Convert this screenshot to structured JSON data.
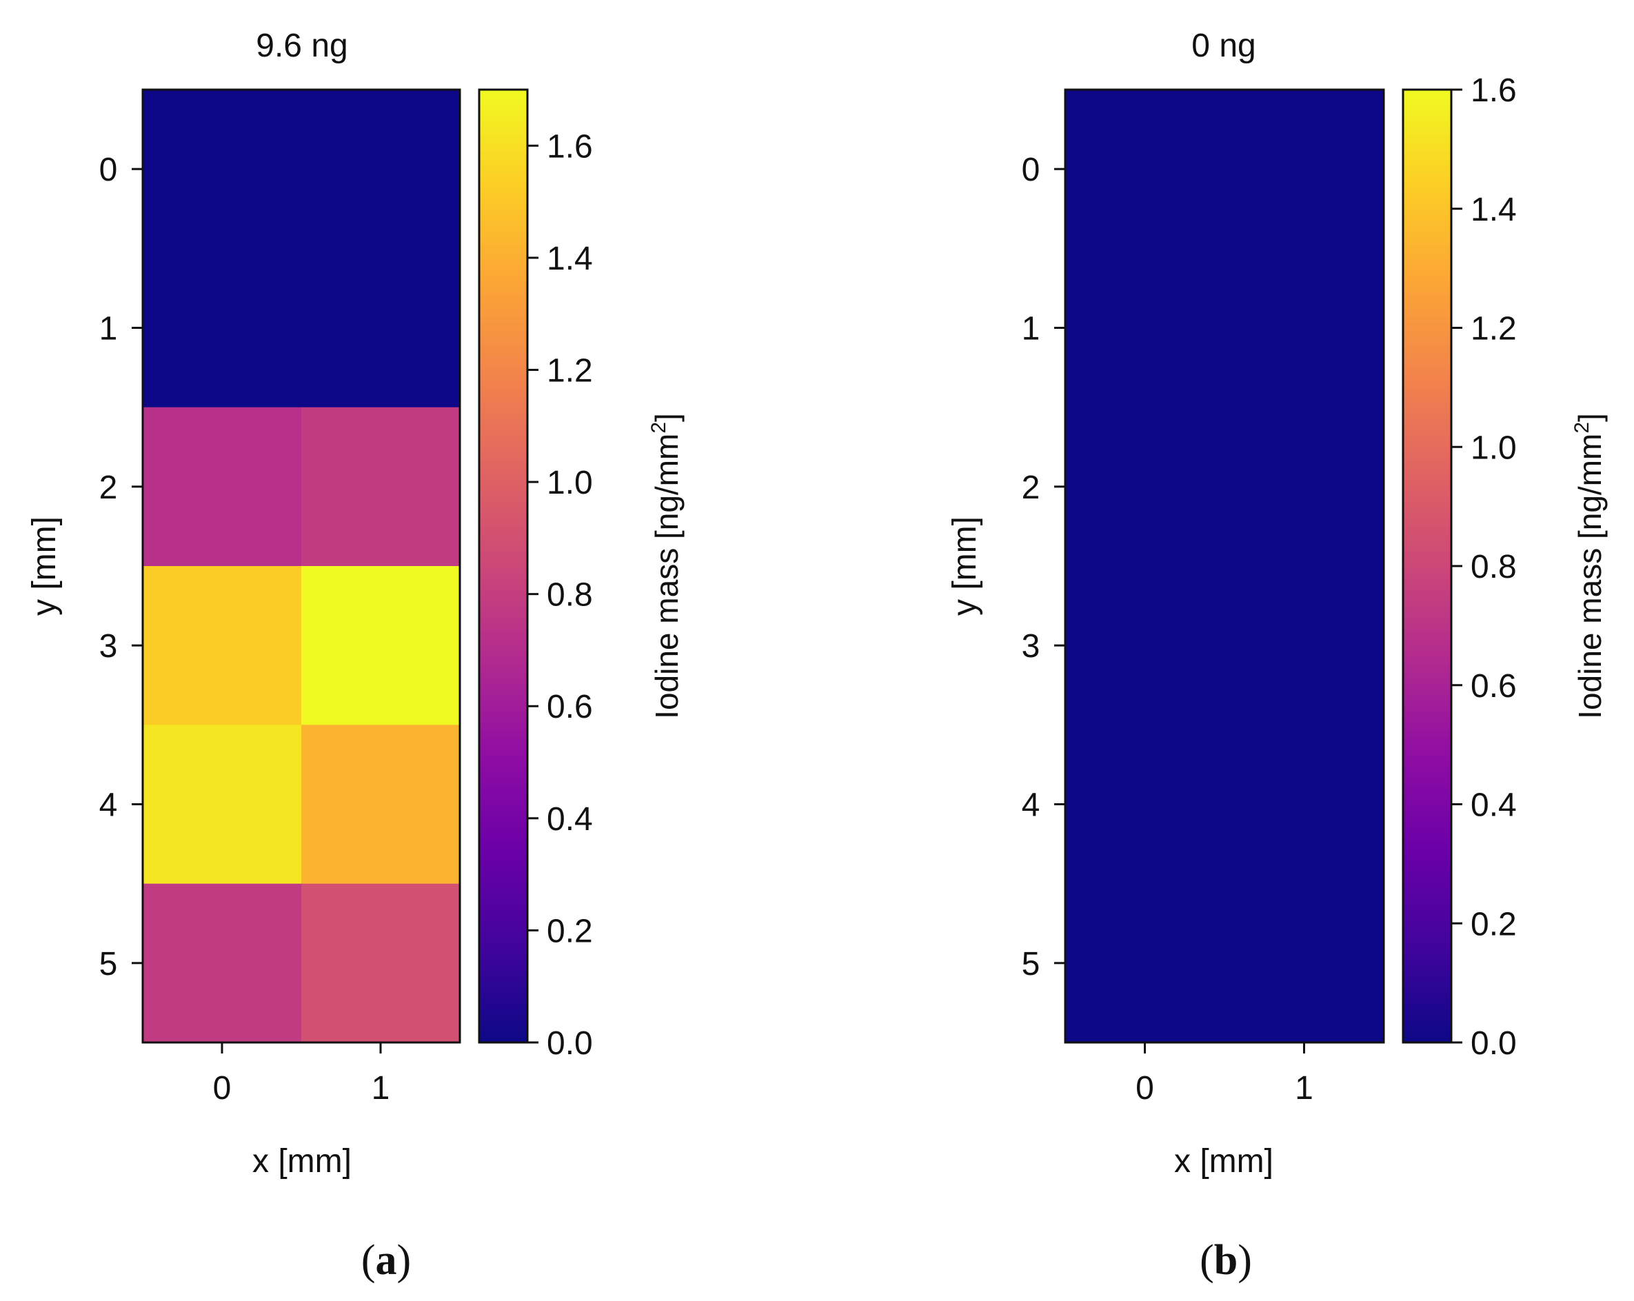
{
  "figure": {
    "caption_a_letter": "a",
    "caption_b_letter": "b"
  },
  "chart_data": [
    {
      "type": "heatmap",
      "panel": "a",
      "title": "9.6 ng",
      "xlabel": "x [mm]",
      "ylabel": "y [mm]",
      "x_categories": [
        "0",
        "1"
      ],
      "y_categories": [
        "0",
        "1",
        "2",
        "3",
        "4",
        "5"
      ],
      "values": [
        [
          0.0,
          0.0
        ],
        [
          0.0,
          0.0
        ],
        [
          0.72,
          0.78
        ],
        [
          1.52,
          1.7
        ],
        [
          1.62,
          1.42
        ],
        [
          0.78,
          0.9
        ]
      ],
      "colorbar": {
        "label": "Iodine mass [ng/mm",
        "label_superscript": "2",
        "label_suffix": "]",
        "range": [
          0,
          1.7
        ],
        "ticks": [
          "0.0",
          "0.2",
          "0.4",
          "0.6",
          "0.8",
          "1.0",
          "1.2",
          "1.4",
          "1.6"
        ],
        "colormap": "plasma"
      }
    },
    {
      "type": "heatmap",
      "panel": "b",
      "title": "0 ng",
      "xlabel": "x [mm]",
      "ylabel": "y [mm]",
      "x_categories": [
        "0",
        "1"
      ],
      "y_categories": [
        "0",
        "1",
        "2",
        "3",
        "4",
        "5"
      ],
      "values": [
        [
          0.0,
          0.0
        ],
        [
          0.0,
          0.0
        ],
        [
          0.0,
          0.0
        ],
        [
          0.0,
          0.0
        ],
        [
          0.0,
          0.0
        ],
        [
          0.0,
          0.0
        ]
      ],
      "colorbar": {
        "label": "Iodine mass [ng/mm",
        "label_superscript": "2",
        "label_suffix": "]",
        "range": [
          0,
          1.6
        ],
        "ticks": [
          "0.0",
          "0.2",
          "0.4",
          "0.6",
          "0.8",
          "1.0",
          "1.2",
          "1.4",
          "1.6"
        ],
        "colormap": "plasma"
      }
    }
  ]
}
